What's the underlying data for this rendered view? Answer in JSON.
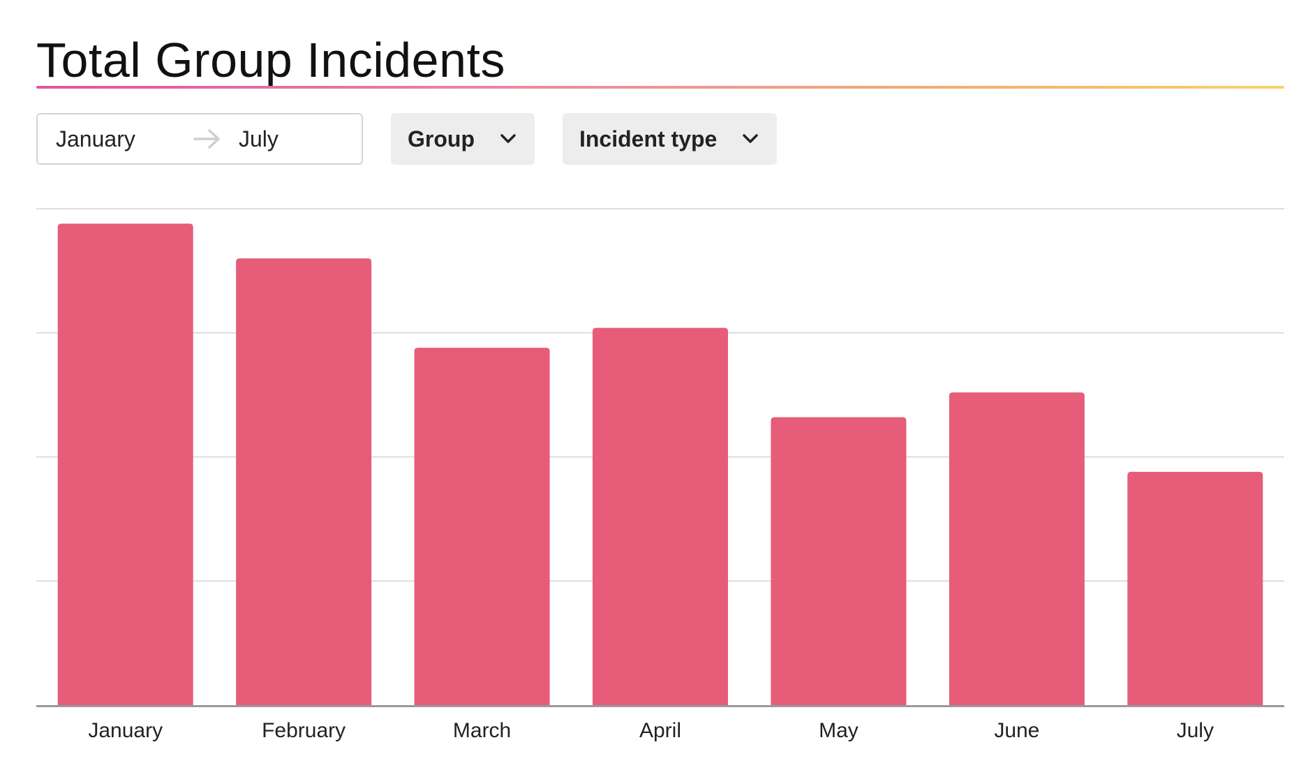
{
  "header": {
    "title": "Total Group Incidents"
  },
  "filters": {
    "date_start": "January",
    "date_end": "July",
    "group_label": "Group",
    "incident_type_label": "Incident type"
  },
  "colors": {
    "bar": "#e75c79",
    "gridline": "#dddddd",
    "baseline": "#9a9a9a",
    "title_rule_start": "#e0549e",
    "title_rule_end": "#f8d46a"
  },
  "icons": {
    "date_arrow": "arrow-right-icon",
    "dropdown": "chevron-down-icon"
  },
  "chart_data": {
    "type": "bar",
    "title": "Total Group Incidents",
    "xlabel": "",
    "ylabel": "",
    "categories": [
      "January",
      "February",
      "March",
      "April",
      "May",
      "June",
      "July"
    ],
    "values": [
      97,
      90,
      72,
      76,
      58,
      63,
      47
    ],
    "ylim": [
      0,
      100
    ],
    "gridlines": [
      0,
      25,
      50,
      75,
      100
    ],
    "grid": true,
    "y_tick_labels_shown": false,
    "legend": "none"
  }
}
